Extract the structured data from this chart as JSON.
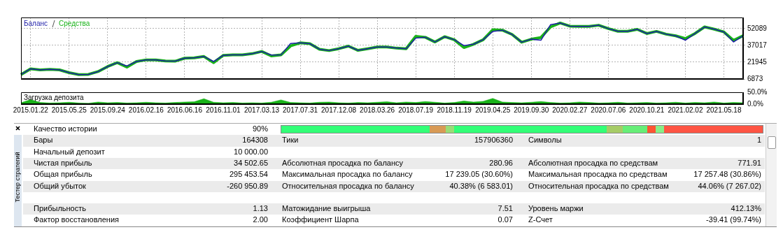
{
  "chart_data": [
    {
      "type": "line",
      "categories": [
        null,
        "2015.01.22",
        null,
        null,
        null,
        "2015.05.25",
        null,
        null,
        null,
        "2015.09.24",
        null,
        null,
        null,
        "2016.02.16",
        null,
        null,
        null,
        "2016.06.16",
        null,
        null,
        null,
        "2016.11.01",
        null,
        null,
        null,
        "2017.03.13",
        null,
        null,
        null,
        "2017.07.31",
        null,
        null,
        null,
        "2017.12.08",
        null,
        null,
        null,
        "2018.03.26",
        null,
        null,
        null,
        "2018.07.19",
        null,
        null,
        null,
        "2018.11.19",
        null,
        null,
        null,
        "2019.04.25",
        null,
        null,
        null,
        "2019.09.30",
        null,
        null,
        null,
        "2020.02.27",
        null,
        null,
        null,
        "2020.07.06",
        null,
        null,
        null,
        "2020.10.21",
        null,
        null,
        null,
        "2021.02.02",
        null,
        null,
        null,
        "2021.05.18",
        null,
        null
      ],
      "series": [
        {
          "name": "Средства",
          "color": "#19b219",
          "values": [
            10800,
            16000,
            15000,
            15500,
            15000,
            12500,
            10800,
            11000,
            13500,
            18000,
            21500,
            17500,
            22500,
            24000,
            24000,
            23000,
            22800,
            25500,
            25800,
            27000,
            21500,
            28000,
            28500,
            28500,
            29500,
            31500,
            27500,
            28400,
            36500,
            39200,
            38500,
            33500,
            32300,
            34000,
            36300,
            32500,
            34000,
            35500,
            35500,
            34500,
            34000,
            45000,
            44200,
            40000,
            44800,
            42000,
            35000,
            38000,
            42000,
            51000,
            50600,
            46800,
            39800,
            42500,
            44000,
            53500,
            57000,
            54200,
            54000,
            54000,
            55000,
            52000,
            49600,
            49600,
            51300,
            47600,
            49500,
            47000,
            45500,
            43000,
            47600,
            53500,
            51500,
            49000,
            41500,
            45600
          ]
        },
        {
          "name": "Баланс",
          "color": "#1f1fa8",
          "values": [
            10800,
            16000,
            15000,
            15500,
            15000,
            12500,
            10800,
            11000,
            13500,
            18000,
            21500,
            18500,
            22500,
            24000,
            24000,
            23000,
            22800,
            25500,
            25800,
            27000,
            22500,
            28000,
            28500,
            28500,
            29500,
            31500,
            28300,
            28400,
            38600,
            39200,
            38500,
            33500,
            32300,
            34000,
            36300,
            32500,
            34000,
            35500,
            35500,
            34500,
            34000,
            43500,
            44200,
            40000,
            44800,
            42000,
            36800,
            38000,
            42000,
            49500,
            50600,
            46800,
            39800,
            42500,
            41600,
            55500,
            57000,
            54200,
            54000,
            54000,
            55000,
            52000,
            49600,
            49600,
            51300,
            47600,
            49500,
            47000,
            45500,
            41600,
            47600,
            53500,
            51500,
            49000,
            40000,
            45600
          ]
        }
      ],
      "ylim": [
        6873,
        61960
      ],
      "yticks": [
        6873,
        21945,
        37017,
        52089
      ],
      "grid": true,
      "legend": "top left",
      "marker": "none",
      "tick_labels": "y"
    },
    {
      "type": "area",
      "title": "Загрузка депозита",
      "categories": [
        null,
        "2015.01.22",
        null,
        null,
        null,
        "2015.05.25",
        null,
        null,
        null,
        "2015.09.24",
        null,
        null,
        null,
        "2016.02.16",
        null,
        null,
        null,
        "2016.06.16",
        null,
        null,
        null,
        "2016.11.01",
        null,
        null,
        null,
        "2017.03.13",
        null,
        null,
        null,
        "2017.07.31",
        null,
        null,
        null,
        "2017.12.08",
        null,
        null,
        null,
        "2018.03.26",
        null,
        null,
        null,
        "2018.07.19",
        null,
        null,
        null,
        "2018.11.19",
        null,
        null,
        null,
        "2019.04.25",
        null,
        null,
        null,
        "2019.09.30",
        null,
        null,
        null,
        "2020.02.27",
        null,
        null,
        null,
        "2020.07.06",
        null,
        null,
        null,
        "2020.10.21",
        null,
        null,
        null,
        "2021.02.02",
        null,
        null,
        null,
        "2021.05.18",
        null,
        null
      ],
      "values": [
        6,
        19,
        7,
        5,
        6,
        8,
        5,
        4,
        9,
        6,
        7,
        5,
        6,
        8,
        6,
        5,
        7,
        9,
        10,
        23,
        8,
        6,
        7,
        5,
        6,
        5,
        8,
        18,
        7,
        6,
        5,
        8,
        9,
        6,
        5,
        7,
        6,
        8,
        10,
        6,
        9,
        7,
        11,
        8,
        5,
        7,
        13,
        9,
        12,
        24,
        9,
        7,
        6,
        8,
        11,
        7,
        5,
        6,
        9,
        7,
        5,
        6,
        8,
        5,
        6,
        7,
        5,
        6,
        8,
        5,
        7,
        6,
        9,
        5,
        7,
        6
      ],
      "color": "#19b219",
      "ylim": [
        0,
        50
      ],
      "yticks": [
        {
          "value": 0,
          "label": "0.0%"
        },
        {
          "value": 50,
          "label": "50.0%"
        }
      ],
      "marker": "none"
    },
    {
      "type": "other",
      "annotations": [
        "Качество истории",
        "90%",
        "Бары",
        "164308",
        "Тики",
        "157906360",
        "Символы",
        "1",
        "Начальный депозит",
        "10 000.00",
        "Чистая прибыль",
        "34 502.65",
        "Абсолютная просадка по балансу",
        "280.96",
        "Абсолютная просадка по средствам",
        "771.91",
        "Общая прибыль",
        "295 453.54",
        "Максимальная просадка по балансу",
        "17 239.05 (30.60%)",
        "Максимальная просадка по средствам",
        "17 257.48 (30.86%)",
        "Общий убыток",
        "-260 950.89",
        "Относительная просадка по балансу",
        "40.38% (6 583.01)",
        "Относительная просадка по средствам",
        "44.06% (7 267.02)",
        "Прибыльность",
        "1.13",
        "Матожидание выигрыша",
        "7.51",
        "Уровень маржи",
        "412.13%",
        "Фактор восстановления",
        "2.00",
        "Коэффициент Шарпа",
        "0.07",
        "Z-Счет",
        "-39.41 (99.74%)",
        "Тестер стратегий"
      ]
    }
  ]
}
